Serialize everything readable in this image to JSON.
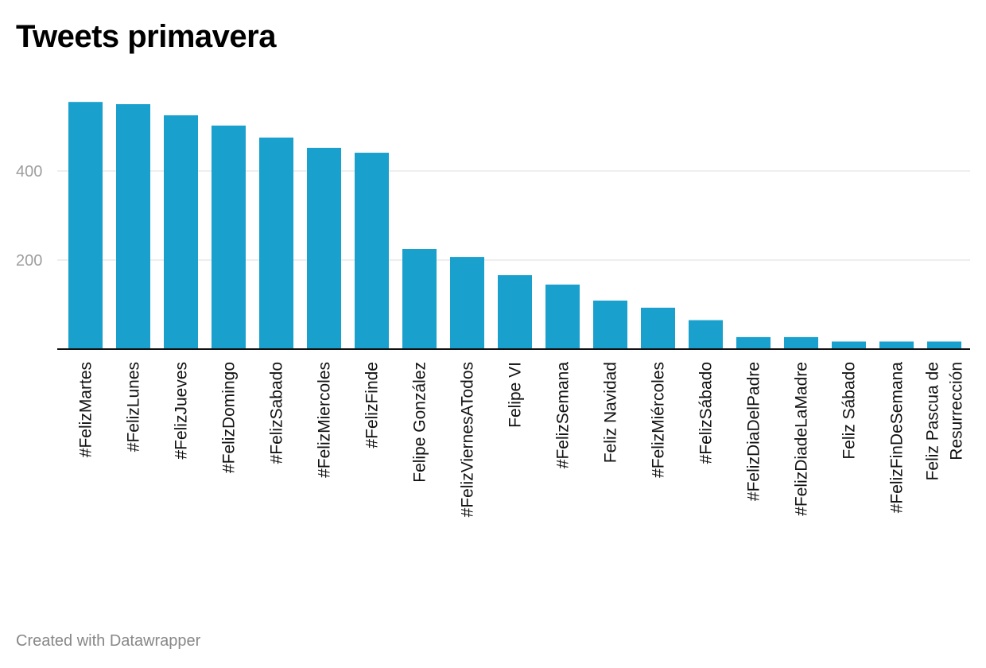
{
  "title": "Tweets primavera",
  "footer": {
    "credit": "Created with Datawrapper"
  },
  "colors": {
    "bar": "#1aa0cc",
    "grid": "#dddddd",
    "axis": "#111111",
    "tick_label": "#9e9e9e",
    "category_label": "#111111"
  },
  "chart_data": {
    "type": "bar",
    "title": "Tweets primavera",
    "xlabel": "",
    "ylabel": "",
    "ylim": [
      0,
      600
    ],
    "yticks": [
      200,
      400
    ],
    "grid": true,
    "categories": [
      [
        "#FelizMartes"
      ],
      [
        "#FelizLunes"
      ],
      [
        "#FelizJueves"
      ],
      [
        "#FelizDomingo"
      ],
      [
        "#FelizSabado"
      ],
      [
        "#FelizMiercoles"
      ],
      [
        "#FelizFinde"
      ],
      [
        "Felipe González"
      ],
      [
        "#FelizViernesATodos"
      ],
      [
        "Felipe VI"
      ],
      [
        "#FelizSemana"
      ],
      [
        "Feliz Navidad"
      ],
      [
        "#FelizMiércoles"
      ],
      [
        "#FelizSábado"
      ],
      [
        "#FelizDiaDelPadre"
      ],
      [
        "#FelizDiadeLaMadre"
      ],
      [
        "Feliz Sábado"
      ],
      [
        "#FelizFinDeSemana"
      ],
      [
        "Feliz Pascua de",
        "Resurrección"
      ]
    ],
    "values": [
      555,
      550,
      525,
      502,
      475,
      452,
      441,
      225,
      207,
      166,
      145,
      109,
      93,
      65,
      27,
      27,
      17,
      17,
      17
    ]
  }
}
